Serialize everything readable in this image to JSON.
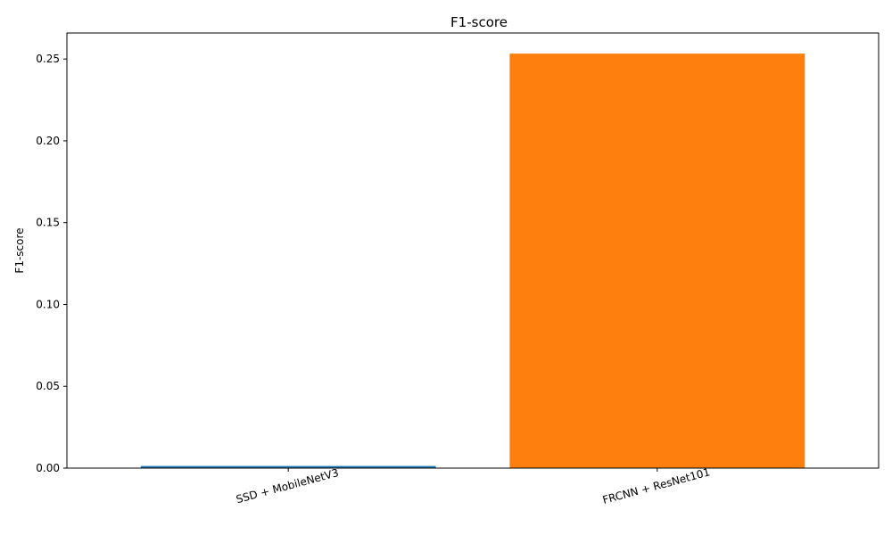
{
  "chart_data": {
    "type": "bar",
    "title": "F1-score",
    "xlabel": "",
    "ylabel": "F1-score",
    "categories": [
      "SSD + MobileNetV3",
      "FRCNN + ResNet101"
    ],
    "values": [
      0.0013,
      0.2533
    ],
    "colors": [
      "#1f77b4",
      "#ff7f0e"
    ],
    "ylim": [
      0,
      0.2659
    ],
    "yticks": [
      0.0,
      0.05,
      0.1,
      0.15,
      0.2,
      0.25
    ],
    "ytick_labels": [
      "0.00",
      "0.05",
      "0.10",
      "0.15",
      "0.20",
      "0.25"
    ],
    "grid": false,
    "xtick_rotation": -15
  }
}
